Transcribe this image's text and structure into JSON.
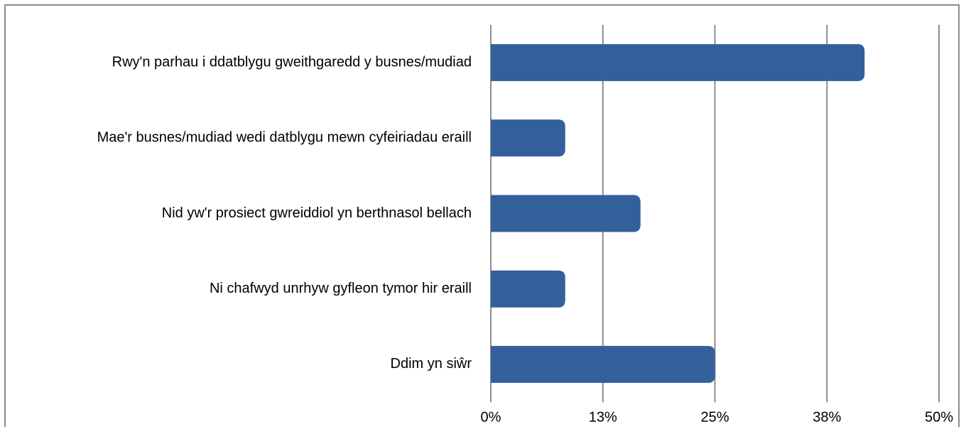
{
  "chart_data": {
    "type": "bar",
    "orientation": "horizontal",
    "categories": [
      "Rwy'n parhau i ddatblygu gweithgaredd y busnes/mudiad",
      "Mae'r busnes/mudiad wedi datblygu mewn cyfeiriadau eraill",
      "Nid yw'r prosiect gwreiddiol yn berthnasol bellach",
      "Ni chafwyd unrhyw gyfleon tymor hir eraill",
      "Ddim yn siŵr"
    ],
    "values": [
      41.7,
      8.3,
      16.7,
      8.3,
      25
    ],
    "color": "#33609b",
    "xlim": [
      0,
      50
    ],
    "xticks": [
      {
        "value": 0,
        "label": "0%"
      },
      {
        "value": 12.5,
        "label": "13%"
      },
      {
        "value": 25,
        "label": "25%"
      },
      {
        "value": 37.5,
        "label": "38%"
      },
      {
        "value": 50,
        "label": "50%"
      }
    ],
    "grid": true
  }
}
